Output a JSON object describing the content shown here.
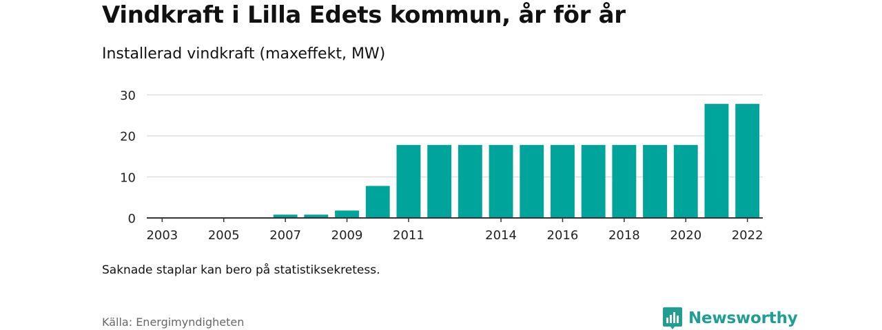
{
  "title": "Vindkraft i Lilla Edets kommun, år för år",
  "subtitle": "Installerad vindkraft (maxeffekt, MW)",
  "note": "Saknade staplar kan bero på statistiksekretess.",
  "source": "Källa: Energimyndigheten",
  "brand": {
    "name": "Newsworthy",
    "icon": "newsworthy-logo-icon",
    "color": "#1f9e94"
  },
  "chart_data": {
    "type": "bar",
    "categories": [
      "2003",
      "2004",
      "2005",
      "2006",
      "2007",
      "2008",
      "2009",
      "2010",
      "2011",
      "2012",
      "2013",
      "2014",
      "2015",
      "2016",
      "2017",
      "2018",
      "2019",
      "2020",
      "2021",
      "2022"
    ],
    "values": [
      0,
      0,
      0,
      0,
      0.8,
      0.8,
      1.8,
      7.8,
      17.8,
      17.8,
      17.8,
      17.8,
      17.8,
      17.8,
      17.8,
      17.8,
      17.8,
      17.8,
      27.8,
      27.8
    ],
    "x_tick_labels": [
      "2003",
      "2005",
      "2007",
      "2009",
      "2011",
      "2014",
      "2016",
      "2018",
      "2020",
      "2022"
    ],
    "y_ticks": [
      0,
      10,
      20,
      30
    ],
    "ylim": [
      0,
      30
    ],
    "xlabel": "",
    "ylabel": "",
    "grid": true,
    "bar_color": "#00a49a",
    "grid_color": "#dddddd",
    "axis_color": "#333333"
  }
}
